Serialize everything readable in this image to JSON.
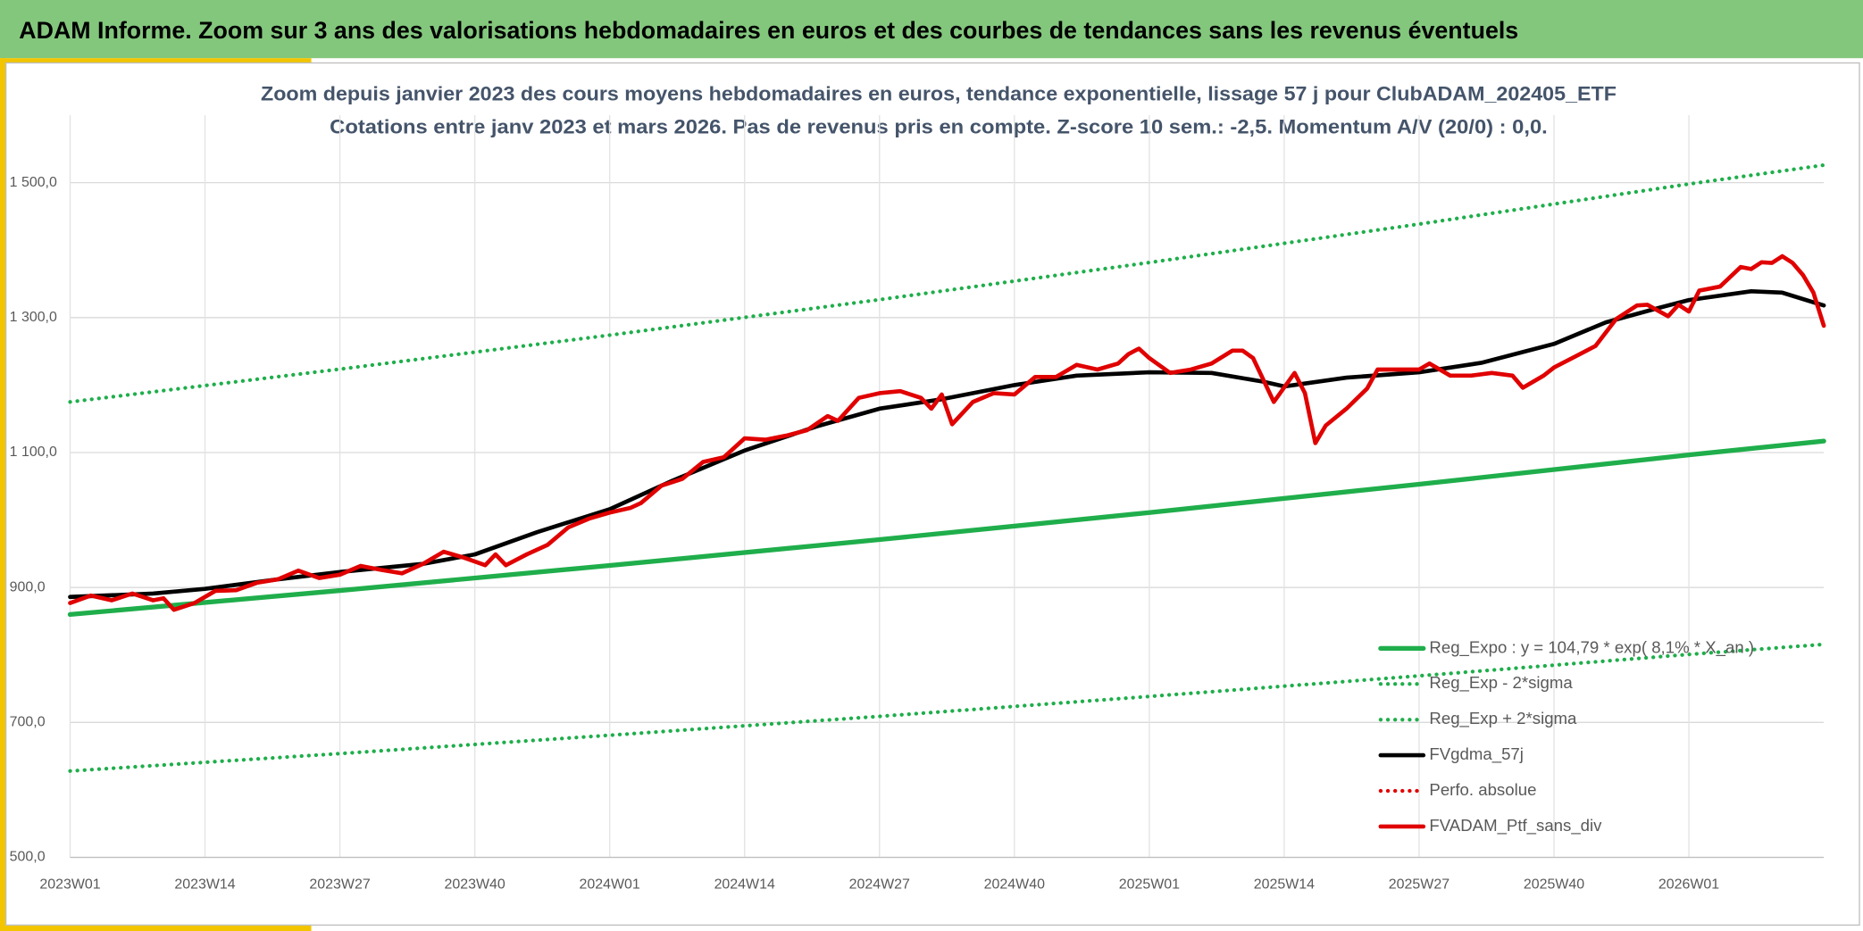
{
  "header": {
    "title": "ADAM Informe. Zoom sur 3 ans des valorisations hebdomadaires en euros et des courbes de tendances sans les revenus éventuels"
  },
  "chart_data": {
    "type": "line",
    "title": "Zoom depuis janvier 2023 des cours moyens hebdomadaires en euros, tendance exponentielle, lissage 57 j pour ClubADAM_202405_ETF",
    "subtitle": "Cotations entre janv 2023 et mars 2026. Pas de revenus pris en compte. Z-score 10 sem.: -2,5. Momentum A/V (20/0) : 0,0.",
    "xlim": [
      0,
      169
    ],
    "xticks": [
      {
        "value": 0,
        "label": "2023W01"
      },
      {
        "value": 13,
        "label": "2023W14"
      },
      {
        "value": 26,
        "label": "2023W27"
      },
      {
        "value": 39,
        "label": "2023W40"
      },
      {
        "value": 52,
        "label": "2024W01"
      },
      {
        "value": 65,
        "label": "2024W14"
      },
      {
        "value": 78,
        "label": "2024W27"
      },
      {
        "value": 91,
        "label": "2024W40"
      },
      {
        "value": 104,
        "label": "2025W01"
      },
      {
        "value": 117,
        "label": "2025W14"
      },
      {
        "value": 130,
        "label": "2025W27"
      },
      {
        "value": 143,
        "label": "2025W40"
      },
      {
        "value": 156,
        "label": "2026W01"
      }
    ],
    "ylim": [
      500,
      1600
    ],
    "yticks": [
      {
        "value": 500,
        "label": "500,0"
      },
      {
        "value": 700,
        "label": "700,0"
      },
      {
        "value": 900,
        "label": "900,0"
      },
      {
        "value": 1100,
        "label": "1 100,0"
      },
      {
        "value": 1300,
        "label": "1 300,0"
      },
      {
        "value": 1500,
        "label": "1 500,0"
      }
    ],
    "grid": true,
    "legend": "bottom-right",
    "series": [
      {
        "name": "Reg_Expo : y = 104,79 * exp( 8,1% * X_an )",
        "color": "#1fae4b",
        "style": "solid",
        "x": [
          0,
          26,
          52,
          78,
          104,
          130,
          156,
          169
        ],
        "values": [
          860,
          895.5,
          932.6,
          971,
          1011,
          1053,
          1096.5,
          1117
        ]
      },
      {
        "name": "Reg_Exp - 2*sigma",
        "color": "#1fae4b",
        "style": "dotted",
        "x": [
          0,
          26,
          52,
          78,
          104,
          130,
          156,
          169
        ],
        "values": [
          628,
          653.8,
          681,
          709,
          738.5,
          769,
          800.8,
          815.7
        ]
      },
      {
        "name": "Reg_Exp + 2*sigma",
        "color": "#1fae4b",
        "style": "dotted",
        "x": [
          0,
          26,
          52,
          78,
          104,
          130,
          156,
          169
        ],
        "values": [
          1175,
          1223.6,
          1274,
          1326.6,
          1381.6,
          1438.6,
          1498,
          1526
        ]
      },
      {
        "name": "FVgdma_57j",
        "color": "#000000",
        "style": "solid",
        "x": [
          0,
          8,
          13,
          20,
          26,
          34,
          39,
          45,
          52,
          58,
          65,
          72,
          78,
          84,
          91,
          97,
          104,
          110,
          115,
          117,
          123,
          130,
          136,
          143,
          148,
          153,
          156,
          162,
          165,
          169
        ],
        "values": [
          886,
          891,
          898,
          912,
          923,
          935,
          949,
          982,
          1016,
          1058,
          1103,
          1139,
          1165,
          1179,
          1200,
          1214,
          1219,
          1218,
          1205,
          1198,
          1211,
          1219,
          1233,
          1261,
          1293,
          1314,
          1326,
          1339,
          1337,
          1318
        ]
      },
      {
        "name": "Perfo. absolue",
        "color": "#e00000",
        "style": "dotted",
        "x": [],
        "values": []
      },
      {
        "name": "FVADAM_Ptf_sans_div",
        "color": "#e00000",
        "style": "solid",
        "x": [
          0,
          2,
          4,
          6,
          8,
          9,
          10,
          12,
          14,
          16,
          18,
          20,
          22,
          24,
          26,
          28,
          30,
          32,
          34,
          36,
          38,
          40,
          41,
          42,
          44,
          46,
          48,
          50,
          52,
          54,
          55,
          57,
          59,
          61,
          63,
          65,
          67,
          69,
          71,
          73,
          74,
          76,
          78,
          80,
          82,
          83,
          84,
          85,
          87,
          89,
          91,
          93,
          95,
          97,
          99,
          101,
          102,
          103,
          104,
          106,
          108,
          110,
          112,
          113,
          114,
          116,
          118,
          119,
          120,
          121,
          123,
          125,
          126,
          128,
          130,
          131,
          133,
          135,
          137,
          139,
          140,
          142,
          143,
          145,
          147,
          149,
          151,
          152,
          154,
          155,
          156,
          157,
          159,
          161,
          162,
          163,
          164,
          165,
          166,
          167,
          168,
          169
        ],
        "values": [
          877,
          888,
          881,
          891,
          881,
          884,
          867,
          877,
          895,
          896,
          907,
          912,
          925,
          914,
          919,
          932,
          926,
          921,
          935,
          953,
          944,
          933,
          949,
          933,
          949,
          963,
          989,
          1002,
          1011,
          1018,
          1025,
          1051,
          1061,
          1086,
          1093,
          1121,
          1119,
          1125,
          1133,
          1154,
          1147,
          1181,
          1188,
          1191,
          1181,
          1165,
          1186,
          1142,
          1175,
          1188,
          1186,
          1212,
          1212,
          1230,
          1223,
          1232,
          1246,
          1254,
          1240,
          1218,
          1223,
          1232,
          1251,
          1251,
          1240,
          1175,
          1218,
          1188,
          1114,
          1140,
          1165,
          1195,
          1223,
          1223,
          1223,
          1232,
          1214,
          1214,
          1218,
          1214,
          1196,
          1214,
          1226,
          1242,
          1258,
          1298,
          1318,
          1319,
          1302,
          1319,
          1309,
          1340,
          1346,
          1375,
          1372,
          1382,
          1381,
          1391,
          1381,
          1363,
          1337,
          1288
        ]
      }
    ]
  }
}
